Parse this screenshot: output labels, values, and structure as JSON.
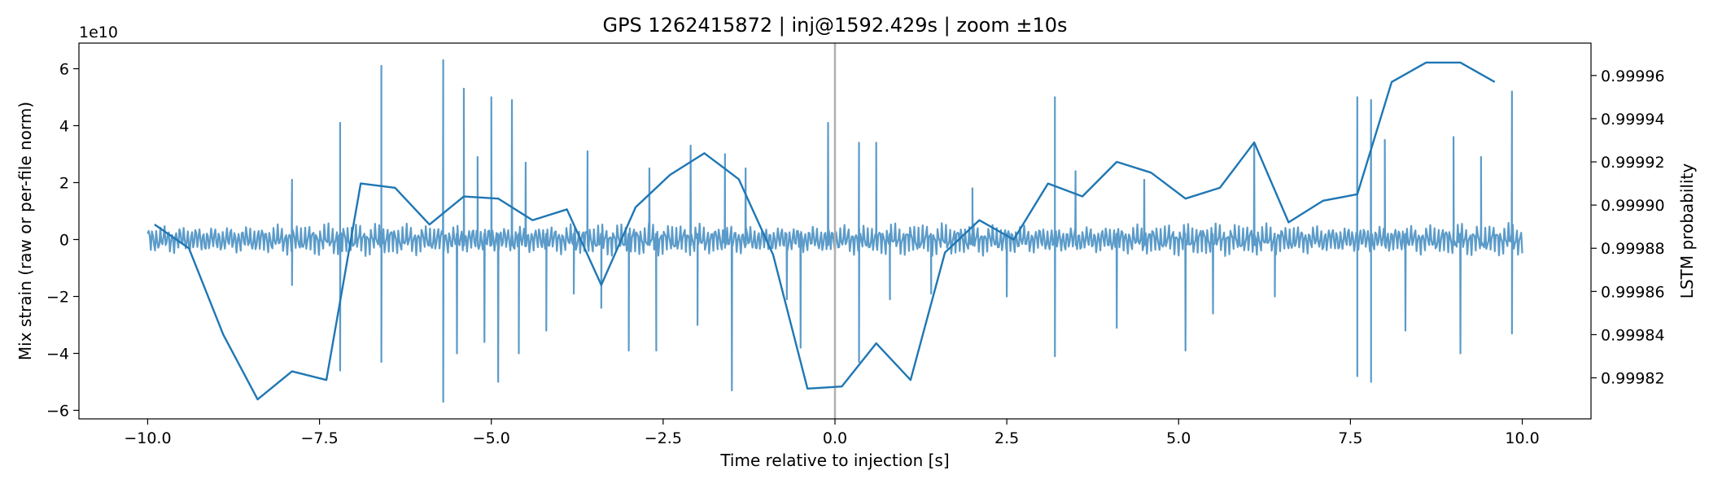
{
  "chart_data": {
    "type": "line",
    "title": "GPS 1262415872 | inj@1592.429s | zoom ±10s",
    "xlabel": "Time relative to injection [s]",
    "ylabel_left": "Mix strain (raw or per-file norm)",
    "ylabel_right": "LSTM probability",
    "left_offset_text": "1e10",
    "xlim": [
      -11.0,
      11.0
    ],
    "ylim_left": [
      -6.3,
      6.9
    ],
    "ylim_right": [
      0.999801,
      0.999975
    ],
    "x_ticks": [
      -10.0,
      -7.5,
      -5.0,
      -2.5,
      0.0,
      2.5,
      5.0,
      7.5,
      10.0
    ],
    "x_tick_labels": [
      "−10.0",
      "−7.5",
      "−5.0",
      "−2.5",
      "0.0",
      "2.5",
      "5.0",
      "7.5",
      "10.0"
    ],
    "y_left_ticks": [
      -6,
      -4,
      -2,
      0,
      2,
      4,
      6
    ],
    "y_left_tick_labels": [
      "−6",
      "−4",
      "−2",
      "0",
      "2",
      "4",
      "6"
    ],
    "y_right_ticks": [
      0.99982,
      0.99984,
      0.99986,
      0.99988,
      0.9999,
      0.99992,
      0.99994,
      0.99996
    ],
    "y_right_tick_labels": [
      "0.99982",
      "0.99984",
      "0.99986",
      "0.99988",
      "0.99990",
      "0.99992",
      "0.99994",
      "0.99996"
    ],
    "injection_marker_x": 0.0,
    "strain_series": {
      "name": "Mix strain",
      "color": "#5b9bc9",
      "t_start": -10.0,
      "t_end": 10.0,
      "noise_amplitude": 0.6,
      "spikes": [
        [
          -7.9,
          2.1
        ],
        [
          -7.9,
          -1.6
        ],
        [
          -7.2,
          4.1
        ],
        [
          -7.2,
          -4.6
        ],
        [
          -6.6,
          6.1
        ],
        [
          -6.6,
          -4.3
        ],
        [
          -5.7,
          6.3
        ],
        [
          -5.7,
          -5.7
        ],
        [
          -5.5,
          -4.0
        ],
        [
          -5.4,
          5.3
        ],
        [
          -5.2,
          2.9
        ],
        [
          -5.1,
          -3.6
        ],
        [
          -5.0,
          5.0
        ],
        [
          -4.9,
          -5.0
        ],
        [
          -4.7,
          4.9
        ],
        [
          -4.6,
          -4.0
        ],
        [
          -4.5,
          2.7
        ],
        [
          -4.2,
          -3.2
        ],
        [
          -3.8,
          -1.9
        ],
        [
          -3.6,
          3.1
        ],
        [
          -3.4,
          -2.4
        ],
        [
          -3.0,
          -3.9
        ],
        [
          -2.7,
          2.5
        ],
        [
          -2.6,
          -3.9
        ],
        [
          -2.1,
          3.3
        ],
        [
          -2.0,
          -3.0
        ],
        [
          -1.6,
          3.0
        ],
        [
          -1.5,
          -5.3
        ],
        [
          -1.3,
          2.5
        ],
        [
          -0.7,
          -2.1
        ],
        [
          -0.5,
          -3.8
        ],
        [
          -0.1,
          4.1
        ],
        [
          0.35,
          3.4
        ],
        [
          0.35,
          -4.3
        ],
        [
          0.6,
          3.4
        ],
        [
          0.8,
          -2.1
        ],
        [
          1.4,
          -1.9
        ],
        [
          2.0,
          1.8
        ],
        [
          2.5,
          -2.0
        ],
        [
          3.2,
          5.0
        ],
        [
          3.2,
          -4.1
        ],
        [
          3.5,
          2.4
        ],
        [
          4.1,
          -3.1
        ],
        [
          4.5,
          2.1
        ],
        [
          5.1,
          -3.9
        ],
        [
          5.5,
          -2.6
        ],
        [
          6.1,
          3.4
        ],
        [
          6.4,
          -2.0
        ],
        [
          7.6,
          5.0
        ],
        [
          7.6,
          -4.8
        ],
        [
          7.8,
          4.9
        ],
        [
          7.8,
          -5.0
        ],
        [
          8.0,
          3.5
        ],
        [
          8.3,
          -3.2
        ],
        [
          9.0,
          3.6
        ],
        [
          9.1,
          -4.0
        ],
        [
          9.4,
          2.9
        ],
        [
          9.85,
          5.2
        ],
        [
          9.85,
          -3.3
        ]
      ]
    },
    "lstm_series": {
      "name": "LSTM probability",
      "color": "#1f77b4",
      "x": [
        -9.9,
        -9.4,
        -8.9,
        -8.4,
        -7.9,
        -7.4,
        -6.9,
        -6.4,
        -5.9,
        -5.4,
        -4.9,
        -4.4,
        -3.9,
        -3.4,
        -2.9,
        -2.4,
        -1.9,
        -1.4,
        -0.9,
        -0.4,
        0.1,
        0.6,
        1.1,
        1.6,
        2.1,
        2.6,
        3.1,
        3.6,
        4.1,
        4.6,
        5.1,
        5.6,
        6.1,
        6.6,
        7.1,
        7.6,
        8.1,
        8.6,
        9.1,
        9.6
      ],
      "y": [
        0.999891,
        0.99988,
        0.99984,
        0.99981,
        0.999823,
        0.999819,
        0.99991,
        0.999908,
        0.999891,
        0.999904,
        0.999903,
        0.999893,
        0.999898,
        0.999863,
        0.999899,
        0.999914,
        0.999924,
        0.999912,
        0.999877,
        0.999815,
        0.999816,
        0.999836,
        0.999819,
        0.999878,
        0.999893,
        0.999884,
        0.99991,
        0.999904,
        0.99992,
        0.999915,
        0.999903,
        0.999908,
        0.999929,
        0.999892,
        0.999902,
        0.999905,
        0.999957,
        0.999966,
        0.999966,
        0.999957
      ]
    }
  }
}
